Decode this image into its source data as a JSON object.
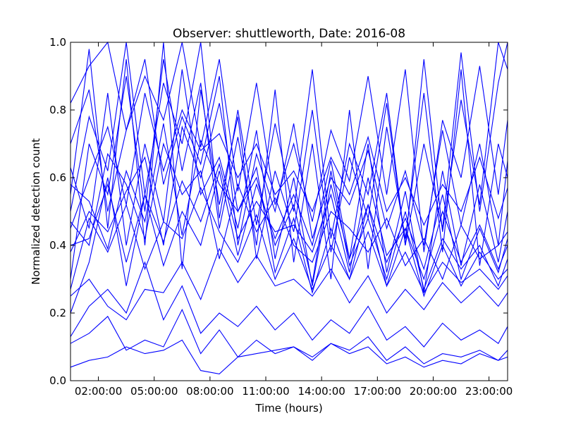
{
  "chart_data": {
    "type": "line",
    "title": "Observer: shuttleworth, Date: 2016-08",
    "xlabel": "Time (hours)",
    "ylabel": "Normalized detection count",
    "xlim": [
      0.5,
      24.0
    ],
    "ylim": [
      0.0,
      1.0
    ],
    "x_ticks": [
      2,
      5,
      8,
      11,
      14,
      17,
      20,
      23
    ],
    "x_tick_labels": [
      "02:00:00",
      "05:00:00",
      "08:00:00",
      "11:00:00",
      "14:00:00",
      "17:00:00",
      "20:00:00",
      "23:00:00"
    ],
    "y_ticks": [
      0.0,
      0.2,
      0.4,
      0.6,
      0.8,
      1.0
    ],
    "y_tick_labels": [
      "0.0",
      "0.2",
      "0.4",
      "0.6",
      "0.8",
      "1.0"
    ],
    "grid": false,
    "legend": "none",
    "line_color": "#0000ff",
    "x": [
      0.5,
      1.5,
      2.5,
      3.5,
      4.5,
      5.5,
      6.5,
      7.5,
      8.5,
      9.5,
      10.5,
      11.5,
      12.5,
      13.5,
      14.5,
      15.5,
      16.5,
      17.5,
      18.5,
      19.5,
      20.5,
      21.5,
      22.5,
      23.5,
      24.0
    ],
    "series": [
      {
        "values": [
          0.82,
          0.93,
          1.0,
          0.74,
          0.9,
          0.77,
          1.0,
          0.69,
          0.95,
          0.56,
          0.88,
          0.52,
          0.7,
          0.47,
          0.74,
          0.59,
          0.9,
          0.55,
          0.92,
          0.38,
          0.77,
          0.6,
          0.93,
          0.55,
          0.77
        ]
      },
      {
        "values": [
          0.58,
          0.53,
          0.39,
          0.62,
          0.47,
          0.76,
          0.43,
          0.71,
          0.58,
          0.5,
          0.6,
          0.4,
          0.52,
          0.29,
          0.62,
          0.34,
          0.48,
          0.3,
          0.5,
          0.27,
          0.42,
          0.33,
          0.4,
          0.28,
          0.36
        ]
      },
      {
        "values": [
          0.4,
          0.42,
          0.58,
          0.35,
          0.55,
          0.41,
          0.59,
          0.47,
          0.64,
          0.42,
          0.53,
          0.44,
          0.46,
          0.38,
          0.55,
          0.32,
          0.6,
          0.37,
          0.45,
          0.3,
          0.5,
          0.35,
          0.46,
          0.33,
          0.4
        ]
      },
      {
        "values": [
          0.25,
          0.3,
          0.22,
          0.18,
          0.27,
          0.26,
          0.35,
          0.24,
          0.39,
          0.29,
          0.37,
          0.28,
          0.3,
          0.25,
          0.33,
          0.23,
          0.31,
          0.2,
          0.27,
          0.21,
          0.29,
          0.23,
          0.28,
          0.22,
          0.26
        ]
      },
      {
        "values": [
          0.11,
          0.14,
          0.19,
          0.09,
          0.12,
          0.1,
          0.21,
          0.08,
          0.15,
          0.07,
          0.12,
          0.08,
          0.1,
          0.06,
          0.11,
          0.09,
          0.13,
          0.06,
          0.1,
          0.05,
          0.08,
          0.07,
          0.09,
          0.06,
          0.07
        ]
      },
      {
        "values": [
          0.04,
          0.06,
          0.07,
          0.1,
          0.08,
          0.09,
          0.12,
          0.03,
          0.02,
          0.07,
          0.08,
          0.09,
          0.1,
          0.07,
          0.11,
          0.08,
          0.1,
          0.05,
          0.07,
          0.04,
          0.06,
          0.05,
          0.08,
          0.06,
          0.09
        ]
      },
      {
        "values": [
          0.45,
          0.6,
          0.75,
          0.52,
          0.85,
          0.62,
          0.8,
          0.68,
          0.73,
          0.6,
          0.7,
          0.55,
          0.62,
          0.5,
          0.66,
          0.55,
          0.72,
          0.5,
          0.6,
          0.46,
          0.58,
          0.5,
          0.66,
          0.48,
          0.57
        ]
      },
      {
        "values": [
          0.3,
          0.7,
          0.55,
          0.9,
          0.5,
          0.95,
          0.62,
          0.88,
          0.45,
          0.72,
          0.4,
          0.86,
          0.35,
          0.7,
          0.3,
          0.8,
          0.33,
          0.75,
          0.42,
          0.85,
          0.38,
          0.92,
          0.34,
          0.7,
          0.6
        ]
      },
      {
        "values": [
          0.55,
          0.98,
          0.45,
          0.95,
          0.4,
          1.0,
          0.33,
          0.86,
          0.52,
          0.78,
          0.36,
          0.62,
          0.44,
          0.8,
          0.38,
          0.66,
          0.48,
          0.82,
          0.4,
          0.7,
          0.45,
          0.97,
          0.5,
          0.88,
          1.0
        ]
      },
      {
        "values": [
          0.2,
          0.35,
          0.6,
          0.28,
          0.55,
          0.34,
          0.5,
          0.4,
          0.62,
          0.37,
          0.58,
          0.42,
          0.55,
          0.4,
          0.65,
          0.36,
          0.52,
          0.35,
          0.48,
          0.33,
          0.55,
          0.3,
          0.45,
          0.32,
          0.42
        ]
      },
      {
        "values": [
          0.63,
          0.45,
          0.85,
          0.4,
          0.7,
          0.47,
          0.92,
          0.55,
          0.66,
          0.45,
          0.74,
          0.36,
          0.6,
          0.28,
          0.58,
          0.36,
          0.7,
          0.32,
          0.56,
          0.26,
          0.62,
          0.34,
          0.58,
          0.35,
          0.5
        ]
      },
      {
        "values": [
          0.13,
          0.22,
          0.27,
          0.2,
          0.35,
          0.18,
          0.28,
          0.14,
          0.2,
          0.16,
          0.22,
          0.15,
          0.2,
          0.12,
          0.18,
          0.14,
          0.22,
          0.12,
          0.16,
          0.1,
          0.17,
          0.12,
          0.15,
          0.11,
          0.16
        ]
      },
      {
        "values": [
          0.5,
          0.78,
          0.62,
          1.0,
          0.55,
          0.88,
          0.7,
          1.0,
          0.48,
          0.8,
          0.46,
          0.76,
          0.5,
          0.92,
          0.42,
          0.7,
          0.55,
          0.85,
          0.4,
          0.95,
          0.44,
          0.83,
          0.52,
          1.0,
          0.92
        ]
      },
      {
        "values": [
          0.38,
          0.5,
          0.44,
          0.56,
          0.66,
          0.4,
          0.75,
          0.6,
          0.82,
          0.5,
          0.63,
          0.32,
          0.48,
          0.26,
          0.45,
          0.3,
          0.52,
          0.28,
          0.45,
          0.25,
          0.4,
          0.28,
          0.38,
          0.3,
          0.33
        ]
      },
      {
        "values": [
          0.7,
          0.86,
          0.5,
          0.74,
          0.95,
          0.58,
          0.78,
          0.64,
          0.9,
          0.4,
          0.67,
          0.5,
          0.76,
          0.42,
          0.6,
          0.52,
          0.68,
          0.45,
          0.62,
          0.4,
          0.74,
          0.46,
          0.7,
          0.4,
          0.65
        ]
      },
      {
        "values": [
          0.47,
          0.4,
          0.67,
          0.58,
          0.42,
          0.7,
          0.55,
          0.62,
          0.36,
          0.58,
          0.44,
          0.54,
          0.4,
          0.35,
          0.5,
          0.45,
          0.38,
          0.48,
          0.34,
          0.42,
          0.3,
          0.46,
          0.36,
          0.4,
          0.44
        ]
      },
      {
        "values": [
          0.27,
          0.48,
          0.38,
          0.52,
          0.33,
          0.47,
          0.42,
          0.57,
          0.44,
          0.35,
          0.49,
          0.3,
          0.42,
          0.27,
          0.4,
          0.3,
          0.44,
          0.28,
          0.38,
          0.26,
          0.35,
          0.29,
          0.33,
          0.27,
          0.31
        ]
      }
    ]
  }
}
